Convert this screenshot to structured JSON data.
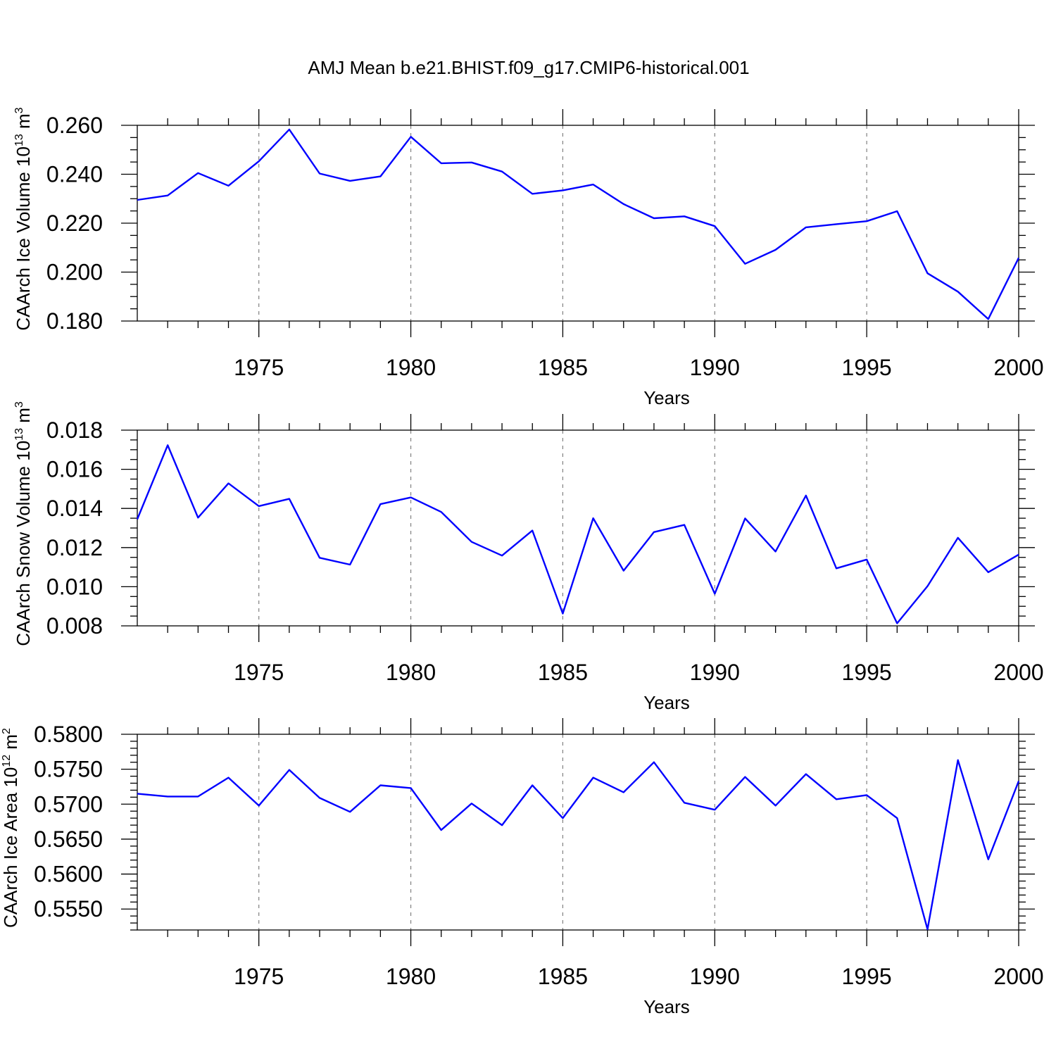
{
  "title": "AMJ Mean b.e21.BHIST.f09_g17.CMIP6-historical.001",
  "colors": {
    "line": "#0000ff",
    "grid": "#808080",
    "axes": "#000000"
  },
  "chart_data": [
    {
      "type": "line",
      "name": "ice-volume",
      "ylabel_text": "CAArch Ice Volume 10",
      "ylabel_exp": "13",
      "ylabel_unit": " m",
      "ylabel_unit_exp": "3",
      "xlabel": "Years",
      "xlim": [
        1971,
        2000
      ],
      "ylim": [
        0.18,
        0.26
      ],
      "xticks": [
        1975,
        1980,
        1985,
        1990,
        1995,
        2000
      ],
      "yticks": [
        0.18,
        0.2,
        0.22,
        0.24,
        0.26
      ],
      "ytick_labels": [
        "0.180",
        "0.200",
        "0.220",
        "0.240",
        "0.260"
      ],
      "yminor_step": 0.005,
      "grid": "vertical dashed at major x ticks",
      "x": [
        1971,
        1972,
        1973,
        1974,
        1975,
        1976,
        1977,
        1978,
        1979,
        1980,
        1981,
        1982,
        1983,
        1984,
        1985,
        1986,
        1987,
        1988,
        1989,
        1990,
        1991,
        1992,
        1993,
        1994,
        1995,
        1996,
        1997,
        1998,
        1999,
        2000
      ],
      "values": [
        0.2295,
        0.2313,
        0.2405,
        0.2353,
        0.2453,
        0.2583,
        0.2403,
        0.2373,
        0.2391,
        0.2553,
        0.2445,
        0.2448,
        0.2411,
        0.232,
        0.2334,
        0.2358,
        0.2278,
        0.222,
        0.2228,
        0.2188,
        0.2034,
        0.2091,
        0.2183,
        0.2196,
        0.2208,
        0.2249,
        0.1995,
        0.192,
        0.1808,
        0.2058
      ]
    },
    {
      "type": "line",
      "name": "snow-volume",
      "ylabel_text": "CAArch Snow Volume 10",
      "ylabel_exp": "13",
      "ylabel_unit": " m",
      "ylabel_unit_exp": "3",
      "xlabel": "Years",
      "xlim": [
        1971,
        2000
      ],
      "ylim": [
        0.008,
        0.018
      ],
      "xticks": [
        1975,
        1980,
        1985,
        1990,
        1995,
        2000
      ],
      "yticks": [
        0.008,
        0.01,
        0.012,
        0.014,
        0.016,
        0.018
      ],
      "ytick_labels": [
        "0.008",
        "0.010",
        "0.012",
        "0.014",
        "0.016",
        "0.018"
      ],
      "yminor_step": 0.0005,
      "grid": "vertical dashed at major x ticks",
      "x": [
        1971,
        1972,
        1973,
        1974,
        1975,
        1976,
        1977,
        1978,
        1979,
        1980,
        1981,
        1982,
        1983,
        1984,
        1985,
        1986,
        1987,
        1988,
        1989,
        1990,
        1991,
        1992,
        1993,
        1994,
        1995,
        1996,
        1997,
        1998,
        1999,
        2000
      ],
      "values": [
        0.01345,
        0.01723,
        0.01353,
        0.01528,
        0.01412,
        0.01449,
        0.01148,
        0.01113,
        0.01422,
        0.01456,
        0.01382,
        0.01229,
        0.01159,
        0.01287,
        0.00863,
        0.0135,
        0.01082,
        0.01279,
        0.01316,
        0.00964,
        0.01349,
        0.0118,
        0.01466,
        0.01094,
        0.01139,
        0.00813,
        0.01003,
        0.0125,
        0.01074,
        0.01164
      ]
    },
    {
      "type": "line",
      "name": "ice-area",
      "ylabel_text": "CAArch Ice Area 10",
      "ylabel_exp": "12",
      "ylabel_unit": " m",
      "ylabel_unit_exp": "2",
      "xlabel": "Years",
      "xlim": [
        1971,
        2000
      ],
      "ylim": [
        0.552,
        0.58
      ],
      "xticks": [
        1975,
        1980,
        1985,
        1990,
        1995,
        2000
      ],
      "yticks": [
        0.555,
        0.56,
        0.565,
        0.57,
        0.575,
        0.58
      ],
      "ytick_labels": [
        "0.5550",
        "0.5600",
        "0.5650",
        "0.5700",
        "0.5750",
        "0.5800"
      ],
      "yminor_step": 0.001,
      "grid": "vertical dashed at major x ticks",
      "x": [
        1971,
        1972,
        1973,
        1974,
        1975,
        1976,
        1977,
        1978,
        1979,
        1980,
        1981,
        1982,
        1983,
        1984,
        1985,
        1986,
        1987,
        1988,
        1989,
        1990,
        1991,
        1992,
        1993,
        1994,
        1995,
        1996,
        1997,
        1998,
        1999,
        2000
      ],
      "values": [
        0.5715,
        0.5711,
        0.5711,
        0.5738,
        0.5698,
        0.5749,
        0.5709,
        0.5689,
        0.5727,
        0.5723,
        0.5663,
        0.5701,
        0.567,
        0.5727,
        0.568,
        0.5738,
        0.5717,
        0.576,
        0.5702,
        0.5692,
        0.5739,
        0.5698,
        0.5743,
        0.5707,
        0.5713,
        0.568,
        0.5521,
        0.5763,
        0.5621,
        0.5733
      ]
    }
  ]
}
